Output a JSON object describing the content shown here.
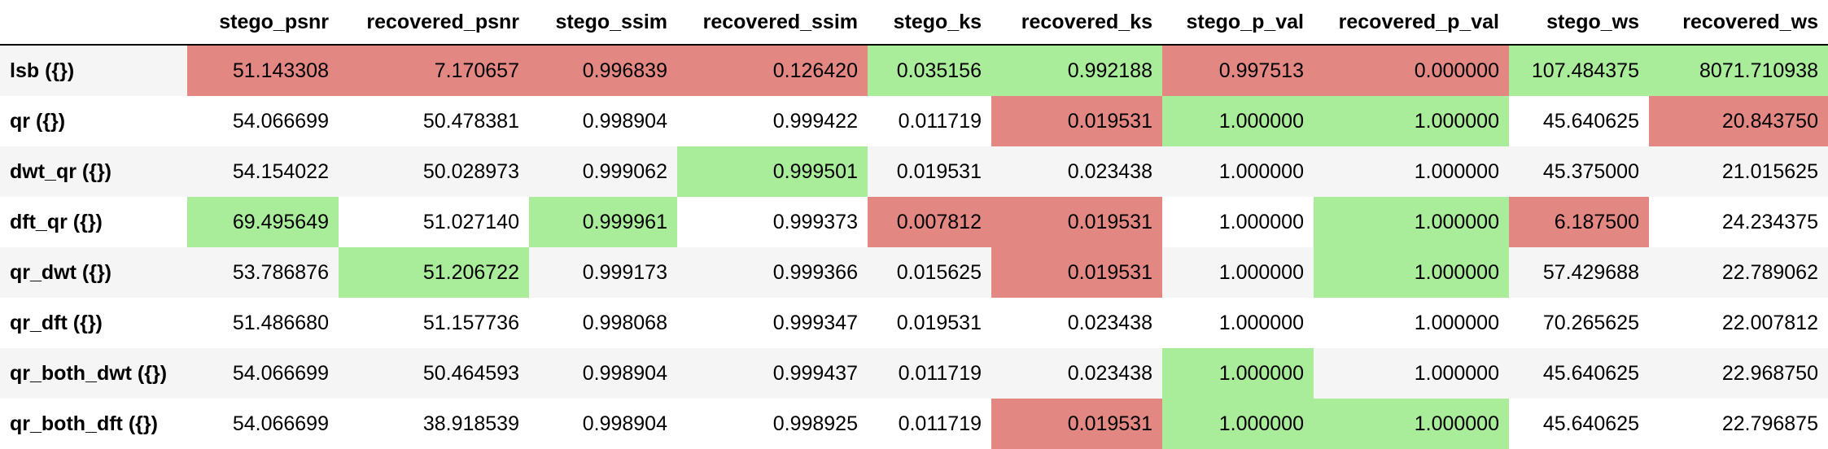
{
  "table": {
    "columns": [
      "stego_psnr",
      "recovered_psnr",
      "stego_ssim",
      "recovered_ssim",
      "stego_ks",
      "recovered_ks",
      "stego_p_val",
      "recovered_p_val",
      "stego_ws",
      "recovered_ws"
    ],
    "colors": {
      "red": "#e38783",
      "green": "#a9ec99",
      "row_stripe": "#f5f5f5",
      "row_plain": "#ffffff"
    },
    "rows": [
      {
        "index": "lsb ({})",
        "values": [
          "51.143308",
          "7.170657",
          "0.996839",
          "0.126420",
          "0.035156",
          "0.992188",
          "0.997513",
          "0.000000",
          "107.484375",
          "8071.710938"
        ],
        "highlight": [
          "red",
          "red",
          "red",
          "red",
          "green",
          "green",
          "red",
          "red",
          "green",
          "green"
        ]
      },
      {
        "index": "qr ({})",
        "values": [
          "54.066699",
          "50.478381",
          "0.998904",
          "0.999422",
          "0.011719",
          "0.019531",
          "1.000000",
          "1.000000",
          "45.640625",
          "20.843750"
        ],
        "highlight": [
          "",
          "",
          "",
          "",
          "",
          "red",
          "green",
          "green",
          "",
          "red"
        ]
      },
      {
        "index": "dwt_qr ({})",
        "values": [
          "54.154022",
          "50.028973",
          "0.999062",
          "0.999501",
          "0.019531",
          "0.023438",
          "1.000000",
          "1.000000",
          "45.375000",
          "21.015625"
        ],
        "highlight": [
          "",
          "",
          "",
          "green",
          "",
          "",
          "",
          "",
          "",
          ""
        ]
      },
      {
        "index": "dft_qr ({})",
        "values": [
          "69.495649",
          "51.027140",
          "0.999961",
          "0.999373",
          "0.007812",
          "0.019531",
          "1.000000",
          "1.000000",
          "6.187500",
          "24.234375"
        ],
        "highlight": [
          "green",
          "",
          "green",
          "",
          "red",
          "red",
          "",
          "green",
          "red",
          ""
        ]
      },
      {
        "index": "qr_dwt ({})",
        "values": [
          "53.786876",
          "51.206722",
          "0.999173",
          "0.999366",
          "0.015625",
          "0.019531",
          "1.000000",
          "1.000000",
          "57.429688",
          "22.789062"
        ],
        "highlight": [
          "",
          "green",
          "",
          "",
          "",
          "red",
          "",
          "green",
          "",
          ""
        ]
      },
      {
        "index": "qr_dft ({})",
        "values": [
          "51.486680",
          "51.157736",
          "0.998068",
          "0.999347",
          "0.019531",
          "0.023438",
          "1.000000",
          "1.000000",
          "70.265625",
          "22.007812"
        ],
        "highlight": [
          "",
          "",
          "",
          "",
          "",
          "",
          "",
          "",
          "",
          ""
        ]
      },
      {
        "index": "qr_both_dwt ({})",
        "values": [
          "54.066699",
          "50.464593",
          "0.998904",
          "0.999437",
          "0.011719",
          "0.023438",
          "1.000000",
          "1.000000",
          "45.640625",
          "22.968750"
        ],
        "highlight": [
          "",
          "",
          "",
          "",
          "",
          "",
          "green",
          "",
          "",
          ""
        ]
      },
      {
        "index": "qr_both_dft ({})",
        "values": [
          "54.066699",
          "38.918539",
          "0.998904",
          "0.998925",
          "0.011719",
          "0.019531",
          "1.000000",
          "1.000000",
          "45.640625",
          "22.796875"
        ],
        "highlight": [
          "",
          "",
          "",
          "",
          "",
          "red",
          "green",
          "green",
          "",
          ""
        ]
      }
    ]
  }
}
